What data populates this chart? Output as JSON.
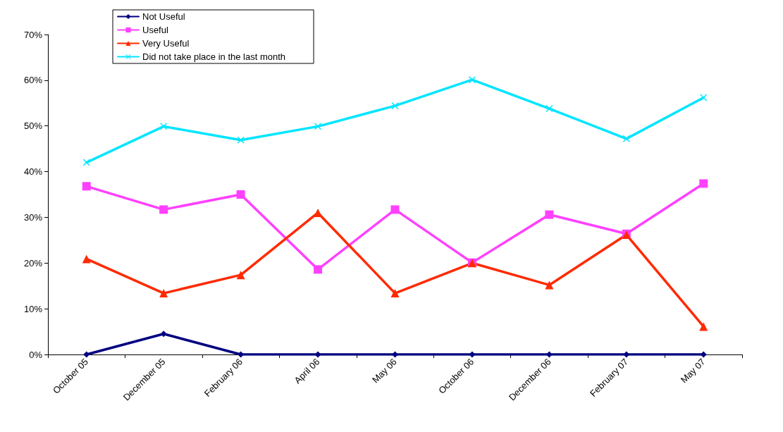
{
  "chart_data": {
    "type": "line",
    "categories": [
      "October 05",
      "December 05",
      "February 06",
      "April 06",
      "May 06",
      "October 06",
      "December 06",
      "February 07",
      "May 07"
    ],
    "series": [
      {
        "name": "Not Useful",
        "color": "#000080",
        "marker": "diamond",
        "values": [
          0,
          4.5,
          0,
          0,
          0,
          0,
          0,
          0,
          0
        ]
      },
      {
        "name": "Useful",
        "color": "#ff40ff",
        "marker": "square",
        "values": [
          36.8,
          31.7,
          35.0,
          18.6,
          31.7,
          20.1,
          30.6,
          26.4,
          37.4
        ]
      },
      {
        "name": "Very Useful",
        "color": "#ff2a00",
        "marker": "triangle",
        "values": [
          20.9,
          13.4,
          17.4,
          31.0,
          13.4,
          20.0,
          15.2,
          26.2,
          6.1
        ]
      },
      {
        "name": "Did not take place in the last month",
        "color": "#00e5ff",
        "marker": "cross",
        "values": [
          42.0,
          49.9,
          46.9,
          49.9,
          54.4,
          60.1,
          53.8,
          47.2,
          56.2
        ]
      }
    ],
    "ylim": [
      0,
      70
    ],
    "yticks": [
      {
        "value": 0,
        "label": "0%"
      },
      {
        "value": 10,
        "label": "10%"
      },
      {
        "value": 20,
        "label": "20%"
      },
      {
        "value": 30,
        "label": "30%"
      },
      {
        "value": 40,
        "label": "40%"
      },
      {
        "value": 50,
        "label": "50%"
      },
      {
        "value": 60,
        "label": "60%"
      },
      {
        "value": 70,
        "label": "70%"
      }
    ],
    "grid": false,
    "legend": "top",
    "line_style": "solid"
  }
}
